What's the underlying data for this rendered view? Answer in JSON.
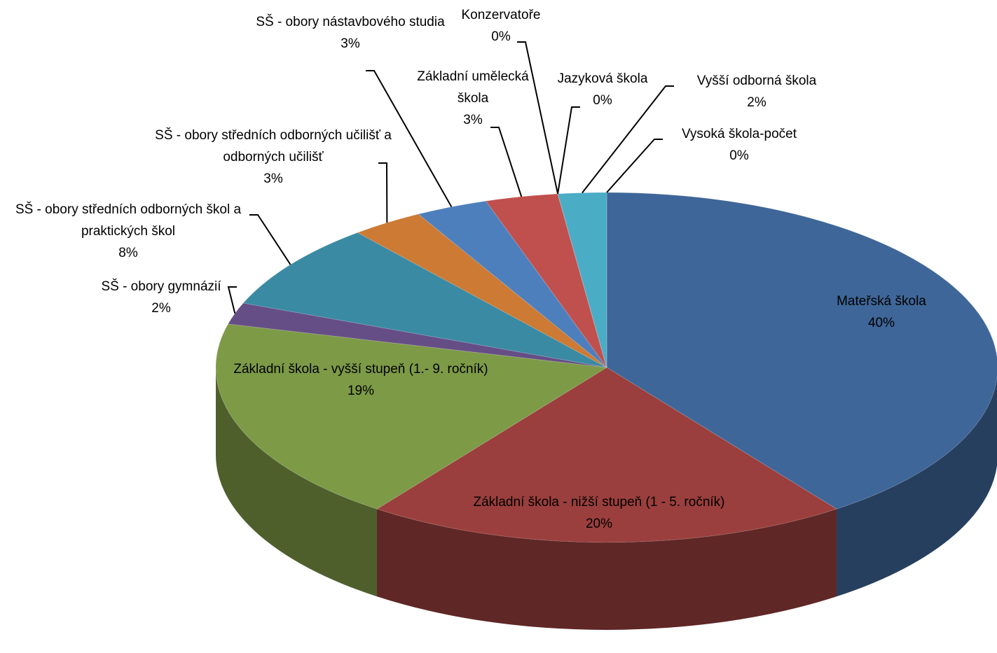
{
  "chart_data": {
    "type": "pie",
    "categories": [
      "Mateřská škola",
      "Základní škola - nižší stupeň (1 - 5. ročník)",
      "Základní škola - vyšší stupeň (1.- 9. ročník)",
      "SŠ - obory gymnázií",
      "SŠ - obory středních odborných škol a praktických škol",
      "SŠ - obory středních odborných učilišť a odborných učilišť",
      "SŠ - obory nástavbového studia",
      "Základní umělecká škola",
      "Konzervatoře",
      "Jazyková škola",
      "Vyšší odborná škola",
      "Vysoká škola-počet"
    ],
    "values": [
      40,
      20,
      19,
      2,
      8,
      3,
      3,
      3,
      0,
      0,
      2,
      0
    ],
    "value_labels": [
      "40%",
      "20%",
      "19%",
      "2%",
      "8%",
      "3%",
      "3%",
      "3%",
      "0%",
      "0%",
      "2%",
      "0%"
    ],
    "colors": [
      "#3e6698",
      "#9a3f3d",
      "#7d9a47",
      "#654e86",
      "#3a8aa3",
      "#cc7a34",
      "#4e7fbd",
      "#c0504d",
      "#9bbb59",
      "#8064a2",
      "#4bacc6",
      "#f79646"
    ]
  }
}
